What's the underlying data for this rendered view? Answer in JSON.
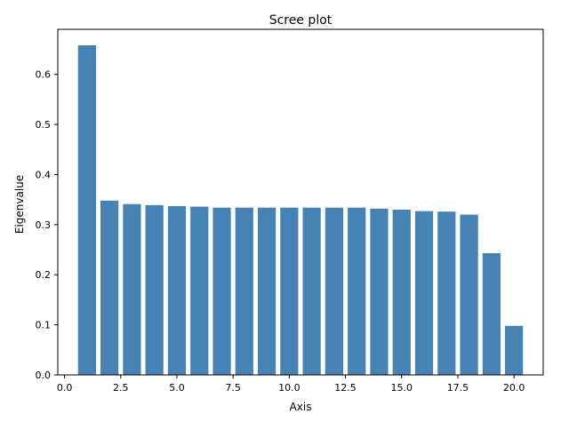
{
  "chart_data": {
    "type": "bar",
    "title": "Scree plot",
    "xlabel": "Axis",
    "ylabel": "Eigenvalue",
    "x": [
      1,
      2,
      3,
      4,
      5,
      6,
      7,
      8,
      9,
      10,
      11,
      12,
      13,
      14,
      15,
      16,
      17,
      18,
      19,
      20
    ],
    "values": [
      0.658,
      0.348,
      0.341,
      0.339,
      0.337,
      0.336,
      0.334,
      0.334,
      0.334,
      0.334,
      0.334,
      0.334,
      0.334,
      0.332,
      0.33,
      0.327,
      0.326,
      0.32,
      0.243,
      0.098
    ],
    "xlim": [
      -0.3,
      21.3
    ],
    "ylim": [
      0,
      0.69
    ],
    "xticks": [
      0.0,
      2.5,
      5.0,
      7.5,
      10.0,
      12.5,
      15.0,
      17.5,
      20.0
    ],
    "xtick_labels": [
      "0.0",
      "2.5",
      "5.0",
      "7.5",
      "10.0",
      "12.5",
      "15.0",
      "17.5",
      "20.0"
    ],
    "yticks": [
      0.0,
      0.1,
      0.2,
      0.3,
      0.4,
      0.5,
      0.6
    ],
    "ytick_labels": [
      "0.0",
      "0.1",
      "0.2",
      "0.3",
      "0.4",
      "0.5",
      "0.6"
    ],
    "bar_width": 0.8,
    "bar_color": "#4682b4",
    "grid": false,
    "legend": false
  }
}
